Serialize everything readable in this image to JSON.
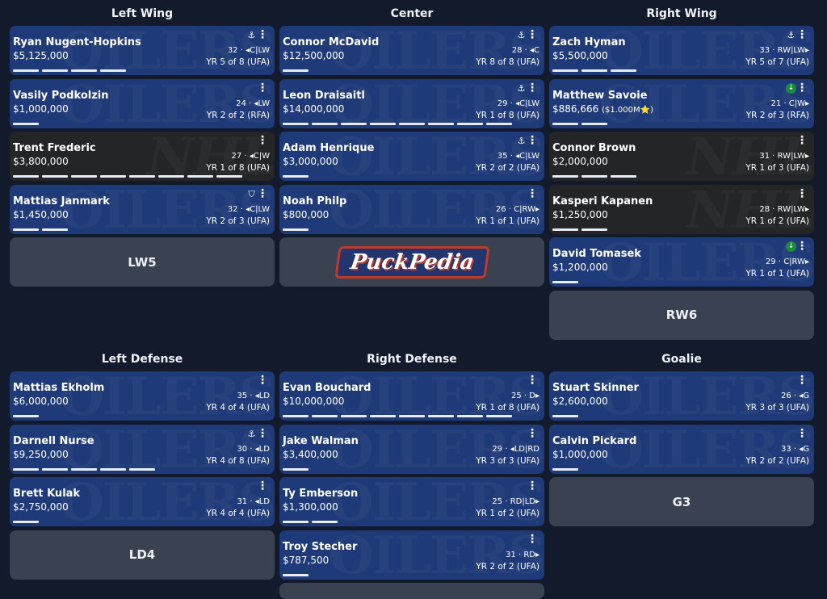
{
  "sections": [
    {
      "title": "Left Wing",
      "placeholder": "LW5",
      "players": [
        {
          "name": "Ryan Nugent-Hopkins",
          "salary": "$5,125,000",
          "age_pos": "32 · ◂C|LW",
          "contract": "YR 5 of 8 (UFA)",
          "years_bars": 4,
          "badge": "anchor-icon"
        },
        {
          "name": "Vasily Podkolzin",
          "salary": "$1,000,000",
          "age_pos": "24 · ◂LW",
          "contract": "YR 2 of 2 (RFA)",
          "years_bars": 1
        },
        {
          "name": "Trent Frederic",
          "salary": "$3,800,000",
          "age_pos": "27 · ◂C|W",
          "contract": "YR 1 of 8 (UFA)",
          "years_bars": 8,
          "dark": true
        },
        {
          "name": "Mattias Janmark",
          "salary": "$1,450,000",
          "age_pos": "32 · ◂C|LW",
          "contract": "YR 2 of 3 (UFA)",
          "years_bars": 2,
          "badge": "shield-icon"
        }
      ]
    },
    {
      "title": "Center",
      "logo": "PuckPedia",
      "players": [
        {
          "name": "Connor McDavid",
          "salary": "$12,500,000",
          "age_pos": "28 · ◂C",
          "contract": "YR 8 of 8 (UFA)",
          "years_bars": 1,
          "badge": "anchor-icon"
        },
        {
          "name": "Leon Draisaitl",
          "salary": "$14,000,000",
          "age_pos": "29 · ◂C|LW",
          "contract": "YR 1 of 8 (UFA)",
          "years_bars": 8,
          "badge": "anchor-icon"
        },
        {
          "name": "Adam Henrique",
          "salary": "$3,000,000",
          "age_pos": "35 · ◂C|LW",
          "contract": "YR 2 of 2 (UFA)",
          "years_bars": 1,
          "badge": "anchor-icon"
        },
        {
          "name": "Noah Philp",
          "salary": "$800,000",
          "age_pos": "26 · C|RW▸",
          "contract": "YR 1 of 1 (UFA)",
          "years_bars": 1
        }
      ]
    },
    {
      "title": "Right Wing",
      "placeholder": "RW6",
      "players": [
        {
          "name": "Zach Hyman",
          "salary": "$5,500,000",
          "age_pos": "33 · RW|LW▸",
          "contract": "YR 5 of 7 (UFA)",
          "years_bars": 3,
          "badge": "anchor-icon"
        },
        {
          "name": "Matthew Savoie",
          "salary": "$886,666",
          "extra": "($1.000M⭐)",
          "age_pos": "21 · C|W▸",
          "contract": "YR 2 of 3 (RFA)",
          "years_bars": 2,
          "badge": "green-arrow-icon"
        },
        {
          "name": "Connor Brown",
          "salary": "$2,000,000",
          "age_pos": "31 · RW|LW▸",
          "contract": "YR 1 of 3 (UFA)",
          "years_bars": 3,
          "dark": true
        },
        {
          "name": "Kasperi Kapanen",
          "salary": "$1,250,000",
          "age_pos": "28 · RW|LW▸",
          "contract": "YR 1 of 2 (UFA)",
          "years_bars": 2,
          "dark": true
        },
        {
          "name": "David Tomasek",
          "salary": "$1,200,000",
          "age_pos": "29 · C|RW▸",
          "contract": "YR 1 of 1 (UFA)",
          "years_bars": 1,
          "badge": "green-arrow-icon"
        }
      ]
    },
    {
      "title": "Left Defense",
      "placeholder": "LD4",
      "players": [
        {
          "name": "Mattias Ekholm",
          "salary": "$6,000,000",
          "age_pos": "35 · ◂LD",
          "contract": "YR 4 of 4 (UFA)",
          "years_bars": 1
        },
        {
          "name": "Darnell Nurse",
          "salary": "$9,250,000",
          "age_pos": "30 · ◂LD",
          "contract": "YR 4 of 8 (UFA)",
          "years_bars": 5,
          "badge": "anchor-icon"
        },
        {
          "name": "Brett Kulak",
          "salary": "$2,750,000",
          "age_pos": "31 · ◂LD",
          "contract": "YR 4 of 4 (UFA)",
          "years_bars": 1
        }
      ]
    },
    {
      "title": "Right Defense",
      "placeholder": "",
      "players": [
        {
          "name": "Evan Bouchard",
          "salary": "$10,000,000",
          "age_pos": "25 · D▸",
          "contract": "YR 1 of 8 (UFA)",
          "years_bars": 8
        },
        {
          "name": "Jake Walman",
          "salary": "$3,400,000",
          "age_pos": "29 · ◂LD|RD",
          "contract": "YR 3 of 3 (UFA)",
          "years_bars": 1
        },
        {
          "name": "Ty Emberson",
          "salary": "$1,300,000",
          "age_pos": "25 · RD|LD▸",
          "contract": "YR 1 of 2 (UFA)",
          "years_bars": 2
        },
        {
          "name": "Troy Stecher",
          "salary": "$787,500",
          "age_pos": "31 · RD▸",
          "contract": "YR 2 of 2 (UFA)",
          "years_bars": 1
        }
      ]
    },
    {
      "title": "Goalie",
      "placeholder": "G3",
      "players": [
        {
          "name": "Stuart Skinner",
          "salary": "$2,600,000",
          "age_pos": "26 · ◂G",
          "contract": "YR 3 of 3 (UFA)",
          "years_bars": 1
        },
        {
          "name": "Calvin Pickard",
          "salary": "$1,000,000",
          "age_pos": "33 · ◂G",
          "contract": "YR 2 of 2 (UFA)",
          "years_bars": 1
        }
      ]
    }
  ],
  "watermarks": {
    "team": "OILERS",
    "league": "NHL"
  },
  "colors": {
    "card": "#1f3a78",
    "card_dark": "#232527",
    "placeholder": "#3a4150",
    "background": "#121a2b"
  }
}
